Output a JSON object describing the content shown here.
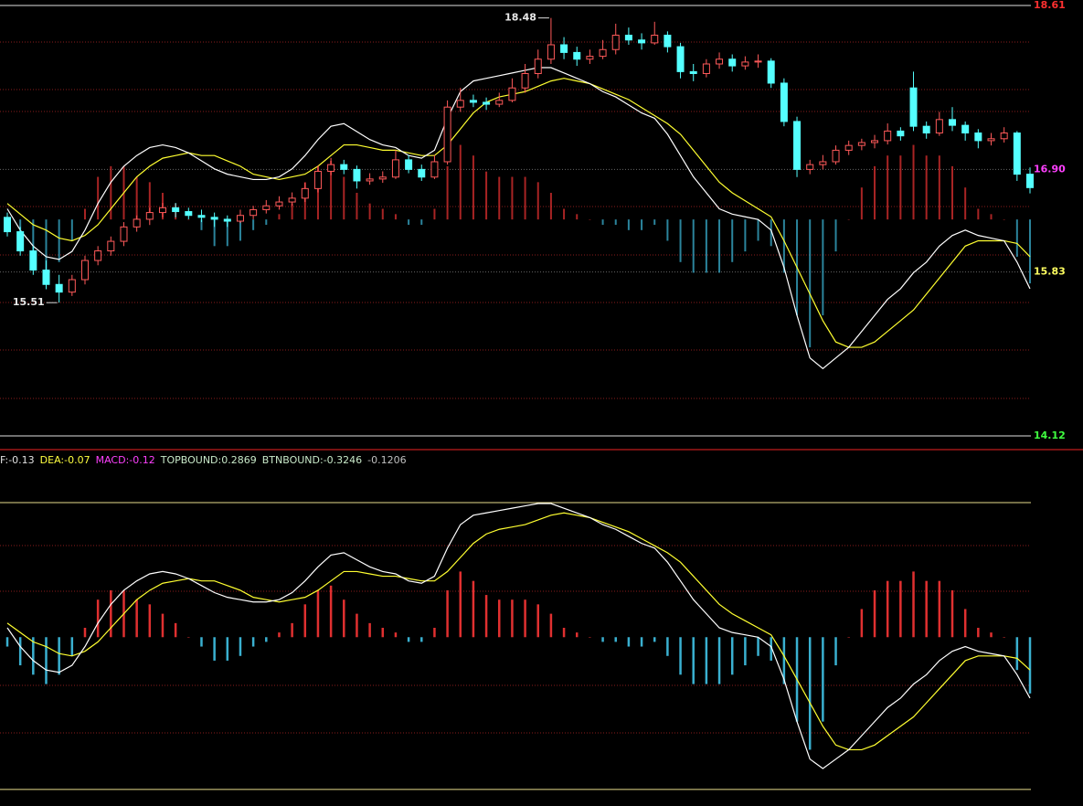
{
  "chart_data": [
    {
      "type": "candlestick",
      "ylim": [
        14.12,
        18.61
      ],
      "yticks": [
        18.61,
        {
          "value": 16.9,
          "label": "16.90"
        },
        15.83,
        14.12
      ],
      "ytick_colors": [
        "#ff3030",
        "#ff40ff",
        "#ffff60",
        "#40ff40"
      ],
      "up_color": "#ff5a5a",
      "down_color": "#54ffff",
      "annotations": [
        18.48,
        15.51
      ],
      "ohlc": [
        [
          16.4,
          16.45,
          16.2,
          16.25
        ],
        [
          16.25,
          16.3,
          16.0,
          16.05
        ],
        [
          16.05,
          16.1,
          15.8,
          15.85
        ],
        [
          15.85,
          15.95,
          15.65,
          15.7
        ],
        [
          15.7,
          15.8,
          15.51,
          15.62
        ],
        [
          15.62,
          15.8,
          15.58,
          15.75
        ],
        [
          15.75,
          16.0,
          15.7,
          15.95
        ],
        [
          15.95,
          16.1,
          15.9,
          16.05
        ],
        [
          16.05,
          16.2,
          16.0,
          16.15
        ],
        [
          16.15,
          16.35,
          16.1,
          16.3
        ],
        [
          16.3,
          16.42,
          16.25,
          16.38
        ],
        [
          16.38,
          16.5,
          16.32,
          16.45
        ],
        [
          16.45,
          16.55,
          16.4,
          16.5
        ],
        [
          16.5,
          16.55,
          16.4,
          16.46
        ],
        [
          16.46,
          16.5,
          16.38,
          16.42
        ],
        [
          16.42,
          16.48,
          16.35,
          16.4
        ],
        [
          16.4,
          16.45,
          16.3,
          16.38
        ],
        [
          16.38,
          16.42,
          16.3,
          16.36
        ],
        [
          16.36,
          16.48,
          16.34,
          16.42
        ],
        [
          16.42,
          16.52,
          16.38,
          16.48
        ],
        [
          16.48,
          16.58,
          16.44,
          16.52
        ],
        [
          16.52,
          16.62,
          16.48,
          16.56
        ],
        [
          16.56,
          16.66,
          16.52,
          16.6
        ],
        [
          16.6,
          16.76,
          16.56,
          16.7
        ],
        [
          16.7,
          16.94,
          16.66,
          16.88
        ],
        [
          16.88,
          17.02,
          16.84,
          16.95
        ],
        [
          16.95,
          17.0,
          16.85,
          16.9
        ],
        [
          16.9,
          16.94,
          16.7,
          16.78
        ],
        [
          16.78,
          16.86,
          16.74,
          16.8
        ],
        [
          16.8,
          16.88,
          16.76,
          16.82
        ],
        [
          16.82,
          17.1,
          16.8,
          17.0
        ],
        [
          17.0,
          17.05,
          16.86,
          16.9
        ],
        [
          16.9,
          16.95,
          16.78,
          16.82
        ],
        [
          16.82,
          17.05,
          16.8,
          16.98
        ],
        [
          16.98,
          17.62,
          16.95,
          17.55
        ],
        [
          17.55,
          17.75,
          17.5,
          17.62
        ],
        [
          17.62,
          17.68,
          17.55,
          17.6
        ],
        [
          17.6,
          17.65,
          17.52,
          17.58
        ],
        [
          17.58,
          17.7,
          17.55,
          17.62
        ],
        [
          17.62,
          17.85,
          17.6,
          17.75
        ],
        [
          17.75,
          18.0,
          17.7,
          17.9
        ],
        [
          17.9,
          18.15,
          17.85,
          18.05
        ],
        [
          18.05,
          18.48,
          18.0,
          18.2
        ],
        [
          18.2,
          18.28,
          18.05,
          18.12
        ],
        [
          18.12,
          18.18,
          17.98,
          18.05
        ],
        [
          18.05,
          18.15,
          18.0,
          18.08
        ],
        [
          18.08,
          18.25,
          18.05,
          18.15
        ],
        [
          18.15,
          18.42,
          18.1,
          18.3
        ],
        [
          18.3,
          18.38,
          18.2,
          18.25
        ],
        [
          18.25,
          18.32,
          18.15,
          18.22
        ],
        [
          18.22,
          18.44,
          18.2,
          18.3
        ],
        [
          18.3,
          18.34,
          18.12,
          18.18
        ],
        [
          18.18,
          18.22,
          17.85,
          17.92
        ],
        [
          17.92,
          18.0,
          17.82,
          17.9
        ],
        [
          17.9,
          18.05,
          17.86,
          18.0
        ],
        [
          18.0,
          18.12,
          17.95,
          18.05
        ],
        [
          18.05,
          18.1,
          17.92,
          17.98
        ],
        [
          17.98,
          18.08,
          17.94,
          18.02
        ],
        [
          18.02,
          18.1,
          17.96,
          18.03
        ],
        [
          18.03,
          18.06,
          17.75,
          17.8
        ],
        [
          17.8,
          17.85,
          17.35,
          17.4
        ],
        [
          17.4,
          17.45,
          16.82,
          16.9
        ],
        [
          16.9,
          17.0,
          16.85,
          16.95
        ],
        [
          16.95,
          17.05,
          16.9,
          16.98
        ],
        [
          16.98,
          17.15,
          16.95,
          17.1
        ],
        [
          17.1,
          17.2,
          17.05,
          17.15
        ],
        [
          17.15,
          17.22,
          17.1,
          17.18
        ],
        [
          17.18,
          17.26,
          17.12,
          17.2
        ],
        [
          17.2,
          17.38,
          17.16,
          17.3
        ],
        [
          17.3,
          17.34,
          17.2,
          17.25
        ],
        [
          17.75,
          17.92,
          17.3,
          17.35
        ],
        [
          17.35,
          17.4,
          17.22,
          17.28
        ],
        [
          17.28,
          17.5,
          17.25,
          17.42
        ],
        [
          17.42,
          17.55,
          17.3,
          17.36
        ],
        [
          17.36,
          17.4,
          17.2,
          17.28
        ],
        [
          17.28,
          17.32,
          17.12,
          17.2
        ],
        [
          17.2,
          17.28,
          17.15,
          17.22
        ],
        [
          17.22,
          17.34,
          17.18,
          17.28
        ],
        [
          17.28,
          17.3,
          16.78,
          16.85
        ],
        [
          16.85,
          16.92,
          16.65,
          16.71
        ]
      ]
    },
    {
      "type": "macd",
      "ylim": [
        -0.36,
        0.4
      ],
      "indicators": [
        {
          "name": "F:",
          "value": -0.13,
          "color": "#e0e0e0"
        },
        {
          "name": "DEA:",
          "value": -0.07,
          "color": "#ffff40"
        },
        {
          "name": "MACD:",
          "value": -0.12,
          "color": "#ff40ff"
        },
        {
          "name": "TOPBOUND:",
          "value": 0.2869,
          "color": "#c8e8c8"
        },
        {
          "name": "BTNBOUND:",
          "value": -0.3246,
          "color": "#c8e8c8"
        },
        {
          "value": -0.1206,
          "color": "#c0c0c0"
        }
      ],
      "bounds_color": "#e8dc8c",
      "dif": {
        "color": "#ffffff",
        "values": [
          0.02,
          -0.02,
          -0.05,
          -0.07,
          -0.075,
          -0.06,
          -0.02,
          0.03,
          0.07,
          0.1,
          0.12,
          0.135,
          0.14,
          0.135,
          0.125,
          0.11,
          0.095,
          0.085,
          0.08,
          0.075,
          0.075,
          0.08,
          0.095,
          0.12,
          0.15,
          0.175,
          0.18,
          0.165,
          0.15,
          0.14,
          0.135,
          0.12,
          0.115,
          0.13,
          0.19,
          0.24,
          0.26,
          0.265,
          0.27,
          0.275,
          0.28,
          0.285,
          0.285,
          0.275,
          0.265,
          0.255,
          0.24,
          0.23,
          0.215,
          0.2,
          0.19,
          0.16,
          0.12,
          0.08,
          0.05,
          0.02,
          0.01,
          0.005,
          0.0,
          -0.02,
          -0.09,
          -0.18,
          -0.26,
          -0.28,
          -0.26,
          -0.24,
          -0.21,
          -0.18,
          -0.15,
          -0.13,
          -0.1,
          -0.08,
          -0.05,
          -0.03,
          -0.02,
          -0.03,
          -0.035,
          -0.04,
          -0.08,
          -0.13
        ]
      },
      "dea": {
        "color": "#ffff30",
        "values": [
          0.03,
          0.01,
          -0.01,
          -0.02,
          -0.035,
          -0.04,
          -0.03,
          -0.01,
          0.02,
          0.05,
          0.08,
          0.1,
          0.115,
          0.12,
          0.125,
          0.12,
          0.12,
          0.11,
          0.1,
          0.085,
          0.08,
          0.075,
          0.08,
          0.085,
          0.1,
          0.12,
          0.14,
          0.14,
          0.135,
          0.13,
          0.13,
          0.125,
          0.12,
          0.12,
          0.14,
          0.17,
          0.2,
          0.22,
          0.23,
          0.235,
          0.24,
          0.25,
          0.26,
          0.265,
          0.26,
          0.255,
          0.245,
          0.235,
          0.225,
          0.21,
          0.195,
          0.18,
          0.16,
          0.13,
          0.1,
          0.07,
          0.05,
          0.035,
          0.02,
          0.005,
          -0.04,
          -0.09,
          -0.14,
          -0.19,
          -0.23,
          -0.24,
          -0.24,
          -0.23,
          -0.21,
          -0.19,
          -0.17,
          -0.14,
          -0.11,
          -0.08,
          -0.05,
          -0.04,
          -0.04,
          -0.04,
          -0.045,
          -0.07
        ]
      },
      "hist": {
        "up_color": "#e03030",
        "down_color": "#3ab0d0",
        "values": [
          -0.02,
          -0.06,
          -0.08,
          -0.1,
          -0.08,
          -0.04,
          0.02,
          0.08,
          0.1,
          0.1,
          0.08,
          0.07,
          0.05,
          0.03,
          0.0,
          -0.02,
          -0.05,
          -0.05,
          -0.04,
          -0.02,
          -0.01,
          0.01,
          0.03,
          0.07,
          0.1,
          0.11,
          0.08,
          0.05,
          0.03,
          0.02,
          0.01,
          -0.01,
          -0.01,
          0.02,
          0.1,
          0.14,
          0.12,
          0.09,
          0.08,
          0.08,
          0.08,
          0.07,
          0.05,
          0.02,
          0.01,
          0.0,
          -0.01,
          -0.01,
          -0.02,
          -0.02,
          -0.01,
          -0.04,
          -0.08,
          -0.1,
          -0.1,
          -0.1,
          -0.08,
          -0.06,
          -0.04,
          -0.05,
          -0.1,
          -0.18,
          -0.24,
          -0.18,
          -0.06,
          0.0,
          0.06,
          0.1,
          0.12,
          0.12,
          0.14,
          0.12,
          0.12,
          0.1,
          0.06,
          0.02,
          0.01,
          0.0,
          -0.07,
          -0.12
        ]
      }
    }
  ]
}
